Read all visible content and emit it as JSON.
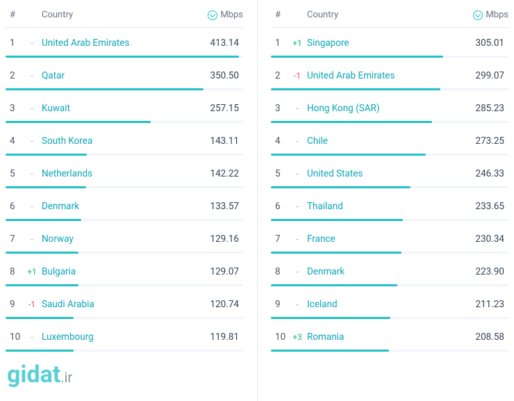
{
  "header": {
    "rank_label": "#",
    "country_label": "Country",
    "mbps_label": "Mbps"
  },
  "colors": {
    "accent": "#22c1c3",
    "link": "#0ea5b7",
    "text": "#374151",
    "muted": "#9ca3af",
    "up": "#10b981",
    "down": "#ef4444",
    "bar_track": "#f1f5f9",
    "divider": "#e5e7eb",
    "background": "#ffffff"
  },
  "bar_max_value": 420,
  "left_panel": {
    "rows": [
      {
        "rank": "1",
        "delta": "-",
        "delta_dir": "none",
        "country": "United Arab Emirates",
        "mbps": "413.14"
      },
      {
        "rank": "2",
        "delta": "-",
        "delta_dir": "none",
        "country": "Qatar",
        "mbps": "350.50"
      },
      {
        "rank": "3",
        "delta": "-",
        "delta_dir": "none",
        "country": "Kuwait",
        "mbps": "257.15"
      },
      {
        "rank": "4",
        "delta": "-",
        "delta_dir": "none",
        "country": "South Korea",
        "mbps": "143.11"
      },
      {
        "rank": "5",
        "delta": "-",
        "delta_dir": "none",
        "country": "Netherlands",
        "mbps": "142.22"
      },
      {
        "rank": "6",
        "delta": "-",
        "delta_dir": "none",
        "country": "Denmark",
        "mbps": "133.57"
      },
      {
        "rank": "7",
        "delta": "-",
        "delta_dir": "none",
        "country": "Norway",
        "mbps": "129.16"
      },
      {
        "rank": "8",
        "delta": "+1",
        "delta_dir": "up",
        "country": "Bulgaria",
        "mbps": "129.07"
      },
      {
        "rank": "9",
        "delta": "-1",
        "delta_dir": "down",
        "country": "Saudi Arabia",
        "mbps": "120.74"
      },
      {
        "rank": "10",
        "delta": "-",
        "delta_dir": "none",
        "country": "Luxembourg",
        "mbps": "119.81"
      }
    ]
  },
  "right_panel": {
    "rows": [
      {
        "rank": "1",
        "delta": "+1",
        "delta_dir": "up",
        "country": "Singapore",
        "mbps": "305.01"
      },
      {
        "rank": "2",
        "delta": "-1",
        "delta_dir": "down",
        "country": "United Arab Emirates",
        "mbps": "299.07"
      },
      {
        "rank": "3",
        "delta": "-",
        "delta_dir": "none",
        "country": "Hong Kong (SAR)",
        "mbps": "285.23"
      },
      {
        "rank": "4",
        "delta": "-",
        "delta_dir": "none",
        "country": "Chile",
        "mbps": "273.25"
      },
      {
        "rank": "5",
        "delta": "-",
        "delta_dir": "none",
        "country": "United States",
        "mbps": "246.33"
      },
      {
        "rank": "6",
        "delta": "-",
        "delta_dir": "none",
        "country": "Thailand",
        "mbps": "233.65"
      },
      {
        "rank": "7",
        "delta": "-",
        "delta_dir": "none",
        "country": "France",
        "mbps": "230.34"
      },
      {
        "rank": "8",
        "delta": "-",
        "delta_dir": "none",
        "country": "Denmark",
        "mbps": "223.90"
      },
      {
        "rank": "9",
        "delta": "-",
        "delta_dir": "none",
        "country": "Iceland",
        "mbps": "211.23"
      },
      {
        "rank": "10",
        "delta": "+3",
        "delta_dir": "up",
        "country": "Romania",
        "mbps": "208.58"
      }
    ]
  },
  "watermark": {
    "brand": "gidat",
    "tld": ".ir"
  }
}
